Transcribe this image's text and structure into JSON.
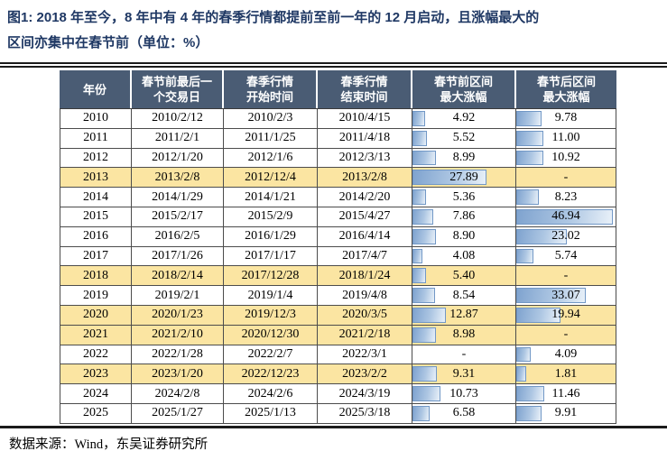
{
  "figure": {
    "title_line1": "图1:  2018 年至今，8 年中有 4 年的春季行情都提前至前一年的 12 月启动，且涨幅最大的",
    "title_line2": "区间亦集中在春节前（单位：%）",
    "source": "数据来源：Wind，东吴证券研究所"
  },
  "colors": {
    "title_text": "#1f3864",
    "header_bg": "#4a5c74",
    "header_text": "#ffffff",
    "highlight_row_bg": "#fbe5a2",
    "bar_fill": "#7fa3cf",
    "bar_border": "#7298c6",
    "rule": "#1b1b1b"
  },
  "chart_data": {
    "type": "table",
    "columns": [
      [
        "年份",
        ""
      ],
      [
        "春节前最后一",
        "个交易日"
      ],
      [
        "春季行情",
        "开始时间"
      ],
      [
        "春季行情",
        "结束时间"
      ],
      [
        "春节前区间",
        "最大涨幅"
      ],
      [
        "春节后区间",
        "最大涨幅"
      ]
    ],
    "rows": [
      {
        "year": "2010",
        "last_day": "2010/2/12",
        "start": "2010/2/3",
        "end": "2010/4/15",
        "pre": "4.92",
        "post": "9.78",
        "highlight": false
      },
      {
        "year": "2011",
        "last_day": "2011/2/1",
        "start": "2011/1/25",
        "end": "2011/4/18",
        "pre": "5.52",
        "post": "11.00",
        "highlight": false
      },
      {
        "year": "2012",
        "last_day": "2012/1/20",
        "start": "2012/1/6",
        "end": "2012/3/13",
        "pre": "8.99",
        "post": "10.92",
        "highlight": false
      },
      {
        "year": "2013",
        "last_day": "2013/2/8",
        "start": "2012/12/4",
        "end": "2013/2/8",
        "pre": "27.89",
        "post": "-",
        "highlight": true
      },
      {
        "year": "2014",
        "last_day": "2014/1/29",
        "start": "2014/1/21",
        "end": "2014/2/20",
        "pre": "5.36",
        "post": "8.23",
        "highlight": false
      },
      {
        "year": "2015",
        "last_day": "2015/2/17",
        "start": "2015/2/9",
        "end": "2015/4/27",
        "pre": "7.86",
        "post": "46.94",
        "highlight": false
      },
      {
        "year": "2016",
        "last_day": "2016/2/5",
        "start": "2016/1/29",
        "end": "2016/4/14",
        "pre": "8.90",
        "post": "23.02",
        "highlight": false
      },
      {
        "year": "2017",
        "last_day": "2017/1/26",
        "start": "2017/1/17",
        "end": "2017/4/7",
        "pre": "4.08",
        "post": "5.74",
        "highlight": false
      },
      {
        "year": "2018",
        "last_day": "2018/2/14",
        "start": "2017/12/28",
        "end": "2018/1/24",
        "pre": "5.40",
        "post": "-",
        "highlight": true
      },
      {
        "year": "2019",
        "last_day": "2019/2/1",
        "start": "2019/1/4",
        "end": "2019/4/8",
        "pre": "8.54",
        "post": "33.07",
        "highlight": false
      },
      {
        "year": "2020",
        "last_day": "2020/1/23",
        "start": "2019/12/3",
        "end": "2020/3/5",
        "pre": "12.87",
        "post": "19.94",
        "highlight": true
      },
      {
        "year": "2021",
        "last_day": "2021/2/10",
        "start": "2020/12/30",
        "end": "2021/2/18",
        "pre": "8.98",
        "post": "-",
        "highlight": true
      },
      {
        "year": "2022",
        "last_day": "2022/1/28",
        "start": "2022/2/7",
        "end": "2022/3/1",
        "pre": "-",
        "post": "4.09",
        "highlight": false
      },
      {
        "year": "2023",
        "last_day": "2023/1/20",
        "start": "2022/12/23",
        "end": "2023/2/2",
        "pre": "9.31",
        "post": "1.81",
        "highlight": true
      },
      {
        "year": "2024",
        "last_day": "2024/2/8",
        "start": "2024/2/6",
        "end": "2024/3/19",
        "pre": "10.73",
        "post": "11.46",
        "highlight": false
      },
      {
        "year": "2025",
        "last_day": "2025/1/27",
        "start": "2025/1/13",
        "end": "2025/3/18",
        "pre": "6.58",
        "post": "9.91",
        "highlight": false
      }
    ]
  }
}
